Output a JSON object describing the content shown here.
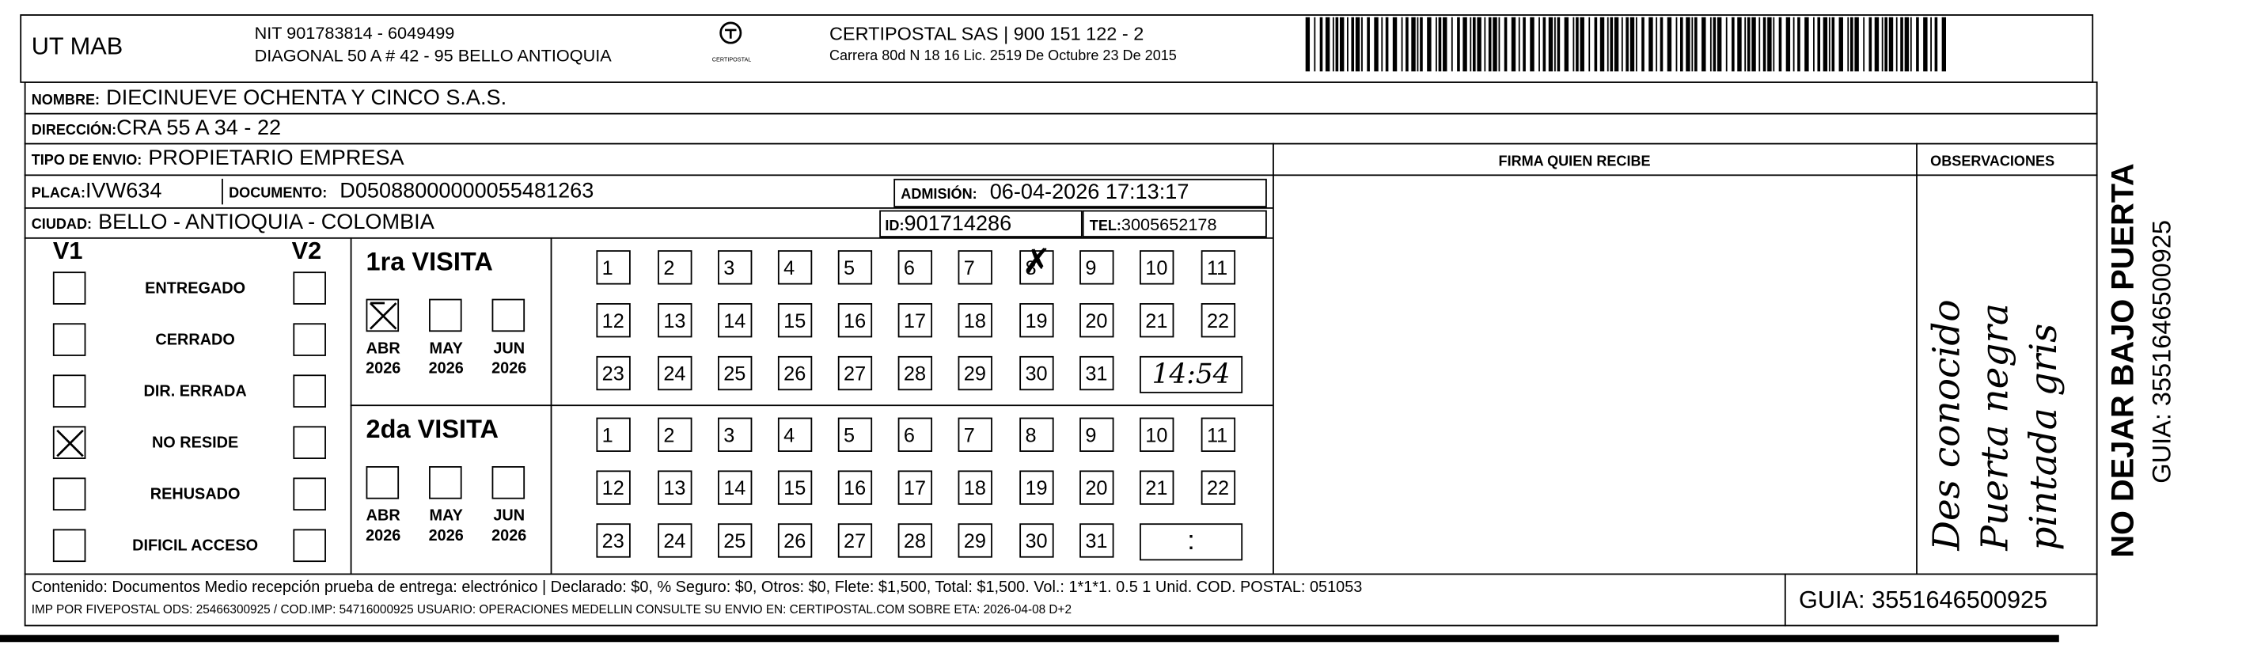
{
  "header": {
    "company": "UT MAB",
    "nit": "NIT 901783814 - 6049499",
    "address": "DIAGONAL 50 A # 42 - 95  BELLO  ANTIOQUIA",
    "logo_text": "CERTIPOSTAL",
    "carrier": "CERTIPOSTAL SAS | 900 151 122 - 2",
    "license": "Carrera 80d N 18 16  Lic. 2519 De Octubre 23 De 2015",
    "barcode_icon": "barcode"
  },
  "recipient": {
    "nombre_label": "NOMBRE:",
    "nombre": "DIECINUEVE OCHENTA Y CINCO S.A.S.",
    "direccion_label": "DIRECCIÓN:",
    "direccion": "CRA 55 A 34 - 22",
    "tipo_label": "TIPO DE ENVIO:",
    "tipo": "PROPIETARIO EMPRESA",
    "placa_label": "PLACA:",
    "placa": "IVW634",
    "documento_label": "DOCUMENTO:",
    "documento": "D05088000000055481263",
    "admision_label": "ADMISIÓN:",
    "admision": "06-04-2026 17:13:17",
    "ciudad_label": "CIUDAD:",
    "ciudad": "BELLO - ANTIOQUIA - COLOMBIA",
    "id_label": "ID:",
    "id": "901714286",
    "tel_label": "TEL:",
    "tel": "3005652178"
  },
  "firma_label": "FIRMA QUIEN RECIBE",
  "observaciones_label": "OBSERVACIONES",
  "observaciones_handwriting": [
    "Des conocido",
    "Puerta negra",
    "pintada gris"
  ],
  "status": {
    "v1_label": "V1",
    "v2_label": "V2",
    "items": [
      {
        "label": "ENTREGADO",
        "v1": false,
        "v2": false
      },
      {
        "label": "CERRADO",
        "v1": false,
        "v2": false
      },
      {
        "label": "DIR. ERRADA",
        "v1": false,
        "v2": false
      },
      {
        "label": "NO RESIDE",
        "v1": true,
        "v2": false
      },
      {
        "label": "REHUSADO",
        "v1": false,
        "v2": false
      },
      {
        "label": "DIFICIL ACCESO",
        "v1": false,
        "v2": false
      }
    ]
  },
  "visits": [
    {
      "title": "1ra VISITA",
      "months": [
        {
          "m": "ABR",
          "y": "2026",
          "checked": true
        },
        {
          "m": "MAY",
          "y": "2026",
          "checked": false
        },
        {
          "m": "JUN",
          "y": "2026",
          "checked": false
        }
      ],
      "marked_day": 8,
      "time": "14:54"
    },
    {
      "title": "2da VISITA",
      "months": [
        {
          "m": "ABR",
          "y": "2026",
          "checked": false
        },
        {
          "m": "MAY",
          "y": "2026",
          "checked": false
        },
        {
          "m": "JUN",
          "y": "2026",
          "checked": false
        }
      ],
      "marked_day": null,
      "time": ":"
    }
  ],
  "side": {
    "warning": "NO DEJAR BAJO PUERTA",
    "guia": "GUIA: 3551646500925"
  },
  "footer": {
    "line1": "Contenido: Documentos Medio recepción prueba de entrega: electrónico | Declarado: $0, % Seguro: $0, Otros: $0, Flete: $1,500, Total: $1,500. Vol.: 1*1*1. 0.5  1 Unid. COD. POSTAL: 051053",
    "line2": "IMP POR FIVEPOSTAL ODS: 25466300925 / COD.IMP: 54716000925 USUARIO: OPERACIONES MEDELLIN CONSULTE SU ENVIO EN: CERTIPOSTAL.COM SOBRE ETA: 2026-04-08 D+2",
    "guia": "GUIA: 3551646500925"
  }
}
